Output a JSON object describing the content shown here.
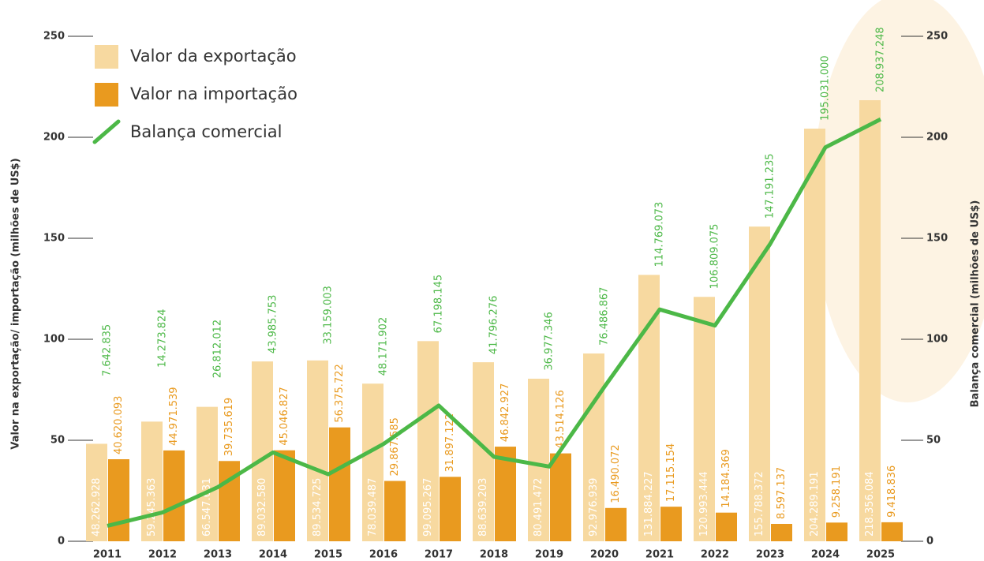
{
  "chart_data": {
    "type": "bar",
    "categories": [
      "2011",
      "2012",
      "2013",
      "2014",
      "2015",
      "2016",
      "2017",
      "2018",
      "2019",
      "2020",
      "2021",
      "2022",
      "2023",
      "2024",
      "2025"
    ],
    "series": [
      {
        "name": "Valor da exportação",
        "color": "#f7d9a0",
        "values": [
          48.262928,
          59.245363,
          66.547631,
          89.03258,
          89.534725,
          78.039487,
          99.095267,
          88.639203,
          80.491472,
          92.976939,
          131.884227,
          120.993444,
          155.788372,
          204.289191,
          218.356084
        ],
        "value_labels": [
          "48.262.928",
          "59.245.363",
          "66.547.631",
          "89.032.580",
          "89.534.725",
          "78.039.487",
          "99.095.267",
          "88.639.203",
          "80.491.472",
          "92.976.939",
          "131.884.227",
          "120.993.444",
          "155.788.372",
          "204.289.191",
          "218.356.084"
        ]
      },
      {
        "name": "Valor na importação",
        "color": "#e99a1f",
        "values": [
          40.620093,
          44.971539,
          39.735619,
          45.046827,
          56.375722,
          29.867585,
          31.897122,
          46.842927,
          43.514126,
          16.490072,
          17.115154,
          14.184369,
          8.597137,
          9.258191,
          9.418836
        ],
        "value_labels": [
          "40.620.093",
          "44.971.539",
          "39.735.619",
          "45.046.827",
          "56.375.722",
          "29.867.585",
          "31.897.122",
          "46.842.927",
          "43.514.126",
          "16.490.072",
          "17.115.154",
          "14.184.369",
          "8.597.137",
          "9.258.191",
          "9.418.836"
        ]
      },
      {
        "name": "Balança comercial",
        "color": "#4cb847",
        "type": "line",
        "axis": "y2",
        "values": [
          7.642835,
          14.273824,
          26.812012,
          43.985753,
          33.159003,
          48.171902,
          67.198145,
          41.796276,
          36.977346,
          76.486867,
          114.769073,
          106.809075,
          147.191235,
          195.031,
          208.937248
        ],
        "value_labels": [
          "7.642.835",
          "14.273.824",
          "26.812.012",
          "43.985.753",
          "33.159.003",
          "48.171.902",
          "67.198.145",
          "41.796.276",
          "36.977.346",
          "76.486.867",
          "114.769.073",
          "106.809.075",
          "147.191.235",
          "195.031.000",
          "208.937.248"
        ]
      }
    ],
    "ylabel": "Valor na exportação/ importação (milhões de US$)",
    "y2label": "Balança comercial (milhões de US$)",
    "ylim": [
      0,
      250
    ],
    "yticks": [
      0,
      50,
      100,
      150,
      200,
      250
    ],
    "y2lim": [
      0,
      250
    ],
    "y2ticks": [
      0,
      50,
      100,
      150,
      200,
      250
    ],
    "grid": false,
    "legend": "upper left"
  }
}
